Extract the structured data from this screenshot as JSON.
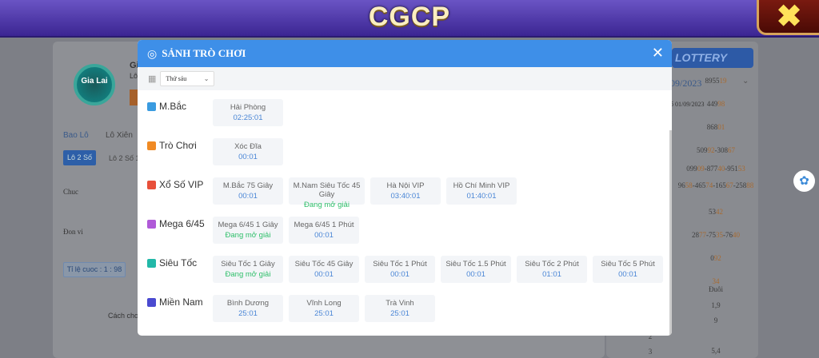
{
  "topbar": {
    "title": "CGCP",
    "close_icon": "x-icon"
  },
  "background": {
    "logo_text": "Gia Lai",
    "game_title": "Gi",
    "game_sub": "Lô",
    "tabs": [
      "Bao Lô",
      "Lô Xiên"
    ],
    "subtabs": [
      "Lô 2 Số",
      "Lô 2 Số 1"
    ],
    "row_labels": [
      "Chuc",
      "Đon vi"
    ],
    "ratio": "Tỉ lệ cuoc : 1 : 98",
    "how_to": "Cách cho",
    "lottery_header": "LOTTERY",
    "date": "09/2023",
    "date_sub": "ố 01/09/2023",
    "results": [
      [
        "8955",
        "19"
      ],
      [
        "449",
        "98"
      ],
      [
        "868",
        "01"
      ],
      [
        "509",
        "92",
        "-308",
        "67"
      ],
      [
        "099",
        "09",
        "-877",
        "40",
        "-951",
        "53"
      ],
      [
        "96",
        "58",
        "-465",
        "74",
        "-165",
        "67",
        "-258",
        "88"
      ],
      [
        "53",
        "42"
      ],
      [
        "28",
        "77",
        "-75",
        "35",
        "-76",
        "40"
      ],
      [
        "0",
        "92"
      ],
      [
        "",
        "34"
      ]
    ],
    "tail_header": "Đuôi",
    "tails": [
      "1,9",
      "9",
      "",
      "5,4"
    ],
    "tail_index": [
      "2",
      "3"
    ]
  },
  "modal": {
    "title": "SẢNH TRÒ CHƠI",
    "day_select": "Thứ sáu",
    "categories": [
      {
        "label": "M.Bắc",
        "icon": "ticket-icon",
        "color": "#3a9be0",
        "games": [
          {
            "name": "Hải Phòng",
            "time": "02:25:01"
          }
        ]
      },
      {
        "label": "Trò Chơi",
        "icon": "target-icon",
        "color": "#f08a24",
        "games": [
          {
            "name": "Xóc Đĩa",
            "time": "00:01"
          }
        ]
      },
      {
        "label": "Xổ Số VIP",
        "icon": "crown-icon",
        "color": "#e8503a",
        "games": [
          {
            "name": "M.Bắc 75 Giây",
            "time": "00:01"
          },
          {
            "name": "M.Nam Siêu Tốc 45 Giây",
            "time": "Đang mở giải",
            "open": true
          },
          {
            "name": "Hà Nội VIP",
            "time": "03:40:01"
          },
          {
            "name": "Hồ Chí Minh VIP",
            "time": "01:40:01"
          }
        ]
      },
      {
        "label": "Mega 6/45",
        "icon": "lottery-machine-icon",
        "color": "#b05ad8",
        "games": [
          {
            "name": "Mega 6/45 1 Giây",
            "time": "Đang mở giải",
            "open": true
          },
          {
            "name": "Mega 6/45 1 Phút",
            "time": "00:01"
          }
        ]
      },
      {
        "label": "Siêu Tốc",
        "icon": "stopwatch-icon",
        "color": "#22b8a8",
        "games": [
          {
            "name": "Siêu Tốc 1 Giây",
            "time": "Đang mở giải",
            "open": true
          },
          {
            "name": "Siêu Tốc 45 Giây",
            "time": "00:01"
          },
          {
            "name": "Siêu Tốc 1 Phút",
            "time": "00:01"
          },
          {
            "name": "Siêu Tốc 1.5 Phút",
            "time": "00:01"
          },
          {
            "name": "Siêu Tốc 2 Phút",
            "time": "01:01"
          },
          {
            "name": "Siêu Tốc 5 Phút",
            "time": "00:01"
          }
        ]
      },
      {
        "label": "Miền Nam",
        "icon": "ticket-icon",
        "color": "#4a4ad0",
        "games": [
          {
            "name": "Bình Dương",
            "time": "25:01"
          },
          {
            "name": "Vĩnh Long",
            "time": "25:01"
          },
          {
            "name": "Trà Vinh",
            "time": "25:01"
          }
        ]
      }
    ]
  },
  "colors": {
    "header": "#3e8fe8",
    "time": "#4a86d6",
    "open": "#2fbf6a"
  }
}
